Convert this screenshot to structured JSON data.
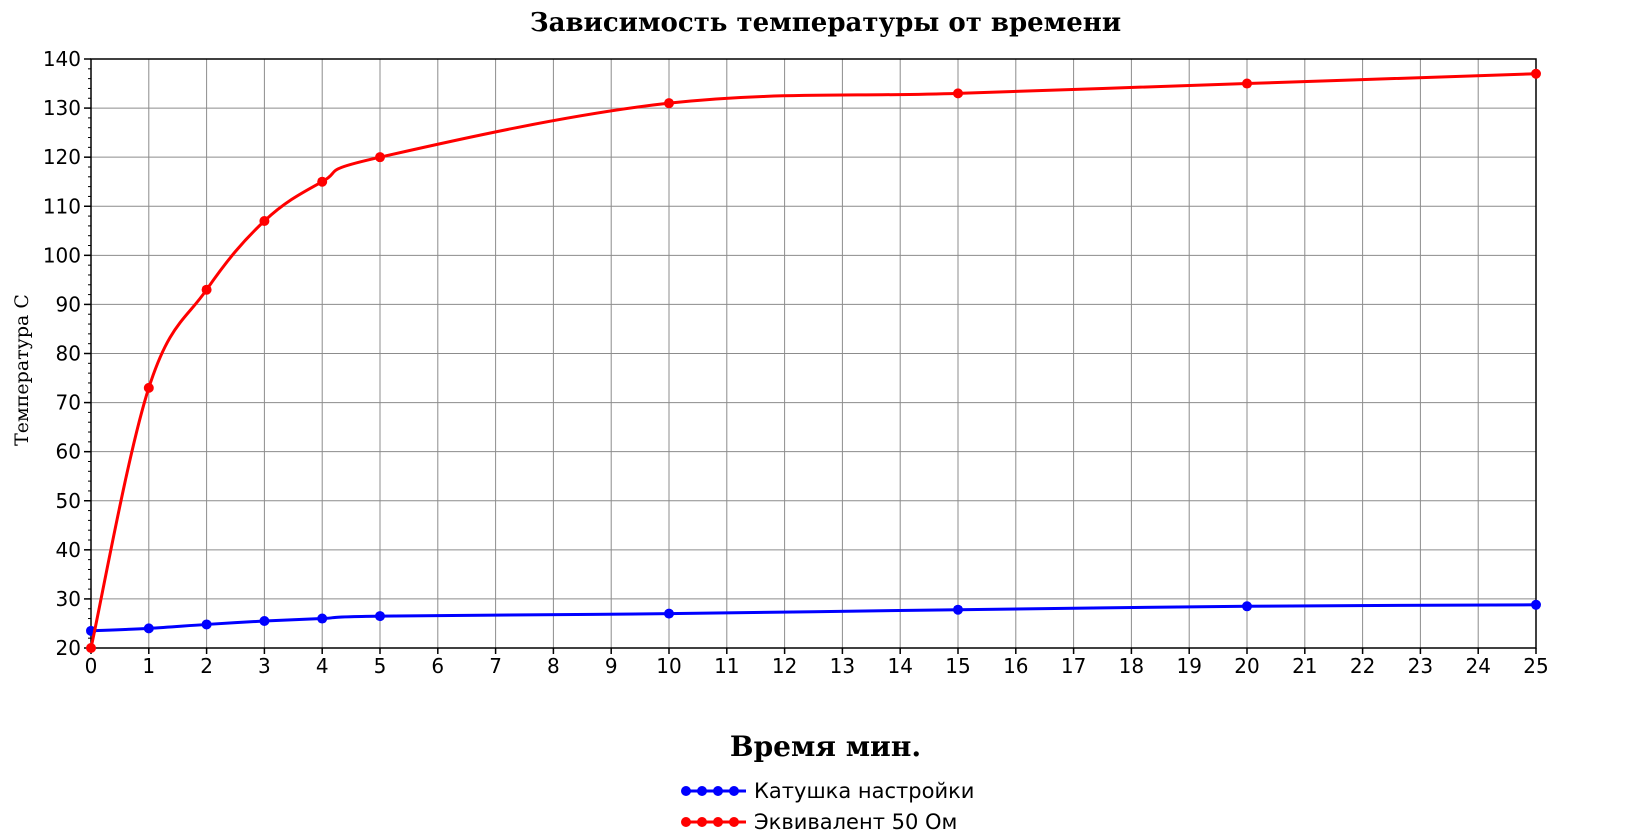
{
  "chart_data": {
    "type": "line",
    "title": "Зависимость температуры от времени",
    "xlabel": "Время мин.",
    "ylabel": "Температура С",
    "xlim": [
      0,
      25
    ],
    "ylim": [
      20,
      140
    ],
    "x_ticks": [
      0,
      1,
      2,
      3,
      4,
      5,
      6,
      7,
      8,
      9,
      10,
      11,
      12,
      13,
      14,
      15,
      16,
      17,
      18,
      19,
      20,
      21,
      22,
      23,
      24,
      25
    ],
    "y_ticks": [
      20,
      30,
      40,
      50,
      60,
      70,
      80,
      90,
      100,
      110,
      120,
      130,
      140
    ],
    "grid": true,
    "legend_position": "bottom-center",
    "series": [
      {
        "name": "Катушка настройки",
        "color": "#0000ff",
        "x": [
          0,
          1,
          2,
          3,
          4,
          5,
          10,
          15,
          20,
          25
        ],
        "y": [
          23.5,
          24,
          24.8,
          25.5,
          26,
          26.5,
          27,
          27.8,
          28.5,
          28.8
        ]
      },
      {
        "name": "Эквивалент 50 Ом",
        "color": "#ff0000",
        "x": [
          0,
          1,
          2,
          3,
          4,
          5,
          10,
          15,
          20,
          25
        ],
        "y": [
          20,
          73,
          93,
          107,
          115,
          120,
          131,
          133,
          135,
          137
        ]
      }
    ]
  }
}
